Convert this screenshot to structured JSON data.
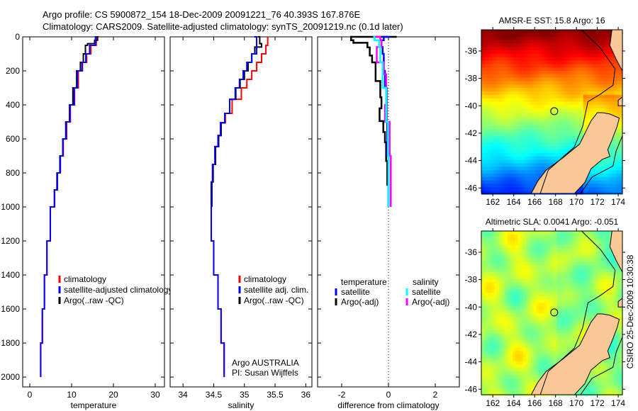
{
  "title_line1": "Argo profile: CS 5900872_154 18-Dec-2009 20091221_76 40.393S 167.876E",
  "title_line2": "Climatology: CARS2009. Satellite-adjusted climatology: synTS_20091219.nc (0.1d later)",
  "side_label": "CSIRO 25-Dec-2009 10:30:38",
  "colors": {
    "climatology": "#ff0000",
    "satellite": "#0000ff",
    "argo": "#000000",
    "sal_satellite": "#00ffff",
    "sal_argo": "#ff00ff",
    "land": "#f9c896"
  },
  "chart_data": [
    {
      "type": "line",
      "id": "temperature",
      "xlabel": "temperature",
      "ylabel": "",
      "xlim": [
        -1.7,
        32.2
      ],
      "ylim": [
        2058,
        0
      ],
      "xticks": [
        0,
        10,
        20,
        30
      ],
      "yticks": [
        0,
        200,
        400,
        600,
        800,
        1000,
        1200,
        1400,
        1600,
        1800,
        2000
      ],
      "legend": [
        "climatology",
        "satellite-adjusted climatology",
        "Argo(..raw -QC)"
      ],
      "series": [
        {
          "name": "climatology",
          "color": "#ff0000",
          "depth": [
            0,
            50,
            100,
            150,
            200,
            300,
            400,
            500,
            600,
            700,
            800,
            900,
            1000,
            1200,
            1400,
            1600,
            1800,
            2000
          ],
          "values": [
            16.2,
            15.9,
            14.6,
            13.6,
            12.6,
            11.6,
            10.7,
            9.7,
            8.8,
            8.0,
            7.3,
            6.6,
            5.9,
            4.9,
            4.1,
            3.5,
            3.0,
            2.6
          ]
        },
        {
          "name": "Argo(..raw -QC)",
          "color": "#000000",
          "depth": [
            0,
            20,
            40,
            50,
            100,
            150,
            200,
            300,
            400,
            500,
            600,
            700,
            800,
            900,
            1000
          ],
          "values": [
            16.4,
            16.2,
            15.5,
            13.8,
            13.3,
            12.8,
            12.1,
            11.2,
            10.3,
            9.5,
            8.6,
            7.9,
            7.2,
            6.5,
            5.9
          ]
        },
        {
          "name": "satellite-adjusted climatology",
          "color": "#0000ff",
          "depth": [
            0,
            50,
            100,
            150,
            200,
            300,
            400,
            500,
            600,
            700,
            800,
            900,
            1000,
            1200,
            1400,
            1600,
            1800,
            2000
          ],
          "values": [
            16.1,
            15.7,
            14.3,
            13.4,
            12.5,
            11.4,
            10.6,
            9.6,
            8.7,
            7.9,
            7.3,
            6.6,
            5.9,
            4.9,
            4.1,
            3.5,
            3.0,
            2.6
          ]
        }
      ]
    },
    {
      "type": "line",
      "id": "salinity",
      "xlabel": "salinity",
      "xlim": [
        33.79,
        36.1
      ],
      "ylim": [
        2058,
        0
      ],
      "xticks": [
        34,
        34.5,
        35,
        35.5,
        36
      ],
      "yticks": [
        0,
        200,
        400,
        600,
        800,
        1000,
        1200,
        1400,
        1600,
        1800,
        2000
      ],
      "legend": [
        "climatology",
        "satellite adj. clim.",
        "Argo(..raw -QC)"
      ],
      "annotation": [
        "Argo AUSTRALIA",
        "PI: Susan Wijffels"
      ],
      "series": [
        {
          "name": "climatology",
          "color": "#ff0000",
          "depth": [
            0,
            50,
            100,
            150,
            200,
            250,
            300,
            367,
            450,
            505,
            580,
            645,
            750,
            853,
            1000,
            1200,
            1400,
            1600,
            1800,
            2000
          ],
          "values": [
            35.38,
            35.38,
            35.35,
            35.28,
            35.2,
            35.12,
            35.04,
            34.95,
            34.8,
            34.69,
            34.62,
            34.58,
            34.52,
            34.49,
            34.46,
            34.46,
            34.5,
            34.57,
            34.62,
            34.67
          ]
        },
        {
          "name": "Argo(..raw -QC)",
          "color": "#000000",
          "depth": [
            0,
            40,
            60,
            100,
            150,
            200,
            250,
            300,
            367,
            450,
            505,
            580,
            645,
            750,
            853,
            1000
          ],
          "values": [
            35.22,
            35.25,
            35.28,
            35.17,
            35.12,
            35.06,
            35.0,
            34.93,
            34.86,
            34.76,
            34.68,
            34.62,
            34.58,
            34.53,
            34.49,
            34.47
          ]
        },
        {
          "name": "satellite adj. clim.",
          "color": "#0000ff",
          "depth": [
            0,
            50,
            100,
            150,
            200,
            250,
            300,
            367,
            450,
            505,
            580,
            645,
            750,
            853,
            1000,
            1200,
            1400,
            1600,
            1800,
            2000
          ],
          "values": [
            35.16,
            35.2,
            35.2,
            35.12,
            35.04,
            34.98,
            34.92,
            34.85,
            34.76,
            34.68,
            34.61,
            34.57,
            34.52,
            34.48,
            34.46,
            34.46,
            34.5,
            34.57,
            34.62,
            34.67
          ]
        }
      ]
    },
    {
      "type": "line",
      "id": "difference",
      "xlabel": "difference from climatology",
      "xlim": [
        -3.03,
        3.03
      ],
      "ylim": [
        2058,
        0
      ],
      "xticks": [
        -2,
        0,
        2
      ],
      "yticks": [
        0,
        200,
        400,
        600,
        800,
        1000,
        1200,
        1400,
        1600,
        1800,
        2000
      ],
      "legend_headers": [
        "temperature",
        "salinity"
      ],
      "legend": [
        "satellite",
        "Argo(-adj)",
        "satellite",
        "Argo(-adj)"
      ],
      "series": [
        {
          "name": "temperature Argo(-adj)",
          "color": "#000000",
          "depth": [
            0,
            20,
            35,
            62,
            110,
            150,
            190,
            260,
            355,
            420,
            495,
            560,
            620,
            730,
            870,
            950,
            1000
          ],
          "values": [
            0.35,
            -1.6,
            -1.5,
            -0.9,
            -0.8,
            -0.7,
            -0.55,
            -0.55,
            -0.35,
            -0.3,
            -0.38,
            -0.22,
            -0.15,
            -0.1,
            -0.05,
            0.0,
            0.0
          ]
        },
        {
          "name": "temperature satellite",
          "color": "#0000ff",
          "depth": [
            0,
            20,
            60,
            100,
            200,
            300,
            500,
            700,
            1000
          ],
          "values": [
            0.05,
            -0.2,
            -0.3,
            -0.25,
            -0.2,
            -0.15,
            -0.08,
            -0.05,
            0.0
          ]
        },
        {
          "name": "salinity Argo(-adj)",
          "color": "#ff00ff",
          "depth": [
            0,
            20,
            60,
            150,
            220,
            400,
            500,
            700,
            1000
          ],
          "values": [
            -0.55,
            -0.35,
            -0.3,
            -0.5,
            -0.2,
            -0.1,
            -0.15,
            0.05,
            0.1
          ]
        },
        {
          "name": "salinity satellite",
          "color": "#00ffff",
          "depth": [
            0,
            20,
            60,
            150,
            300,
            500,
            700,
            1000
          ],
          "values": [
            -0.65,
            -0.6,
            -0.4,
            -0.35,
            -0.25,
            -0.1,
            -0.02,
            0.0
          ]
        }
      ]
    },
    {
      "type": "heatmap",
      "id": "sst-map",
      "title": "AMSR-E SST: 15.8 Argo: 16",
      "xlim": [
        160.9,
        174.4
      ],
      "ylim": [
        -46.4,
        -34.45
      ],
      "xticks": [
        162,
        164,
        166,
        168,
        170,
        172,
        174
      ],
      "yticks": [
        -36,
        -38,
        -40,
        -42,
        -44,
        -46
      ],
      "ytick_labels": [
        "-36",
        "-38",
        "-40",
        "-42",
        "-44",
        "-46"
      ],
      "argo_position": {
        "lon": 167.876,
        "lat": -40.393
      },
      "colormap": "jet"
    },
    {
      "type": "heatmap",
      "id": "sla-map",
      "title": "Altimetric SLA: 0.0041 Argo: -0.051",
      "xlim": [
        160.9,
        174.4
      ],
      "ylim": [
        -46.4,
        -34.45
      ],
      "xticks": [
        162,
        164,
        166,
        168,
        170,
        172,
        174
      ],
      "yticks": [
        -36,
        -38,
        -40,
        -42,
        -44,
        -46
      ],
      "ytick_labels": [
        "-36",
        "-38",
        "-40",
        "-42",
        "-44",
        "-46"
      ],
      "argo_position": {
        "lon": 167.876,
        "lat": -40.393
      },
      "colormap": "jet"
    }
  ]
}
